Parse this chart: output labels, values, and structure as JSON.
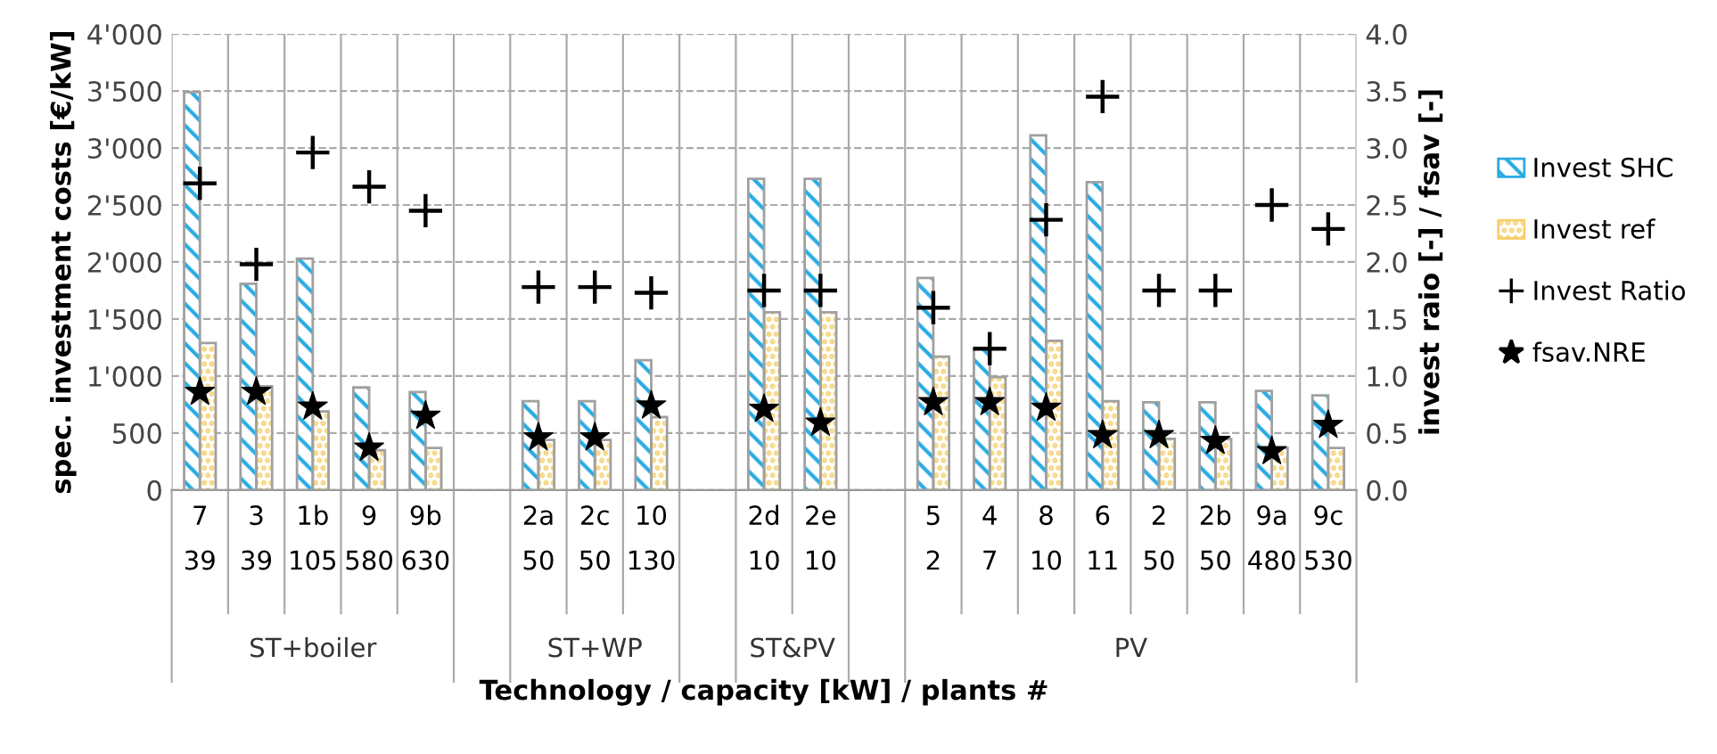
{
  "chart_data": {
    "type": "bar",
    "categories": [
      "7\n39",
      "3\n39",
      "1b\n105",
      "9\n580",
      "9b\n630",
      null,
      "2a\n50",
      "2c\n50",
      "10\n130",
      null,
      "2d\n10",
      "2e\n10",
      null,
      "5\n2",
      "4\n7",
      "8\n10",
      "6\n11",
      "2\n50",
      "2b\n50",
      "9a\n480",
      "9c\n530"
    ],
    "series": [
      {
        "name": "Invest SHC",
        "color": "#29abe2",
        "values": [
          3490,
          1810,
          2030,
          900,
          860,
          null,
          780,
          780,
          1140,
          null,
          2730,
          2730,
          null,
          1860,
          1240,
          3110,
          2700,
          770,
          770,
          870,
          830
        ]
      },
      {
        "name": "Invest ref",
        "color": "#f5cf6a",
        "values": [
          1290,
          910,
          690,
          350,
          370,
          null,
          440,
          440,
          640,
          null,
          1560,
          1560,
          null,
          1170,
          990,
          1310,
          780,
          450,
          450,
          370,
          370
        ]
      },
      {
        "name": "Invest Ratio",
        "type": "scatter",
        "axis": "y2",
        "marker": "cross",
        "color": "#000000",
        "values": [
          2.69,
          1.98,
          2.96,
          2.66,
          2.45,
          null,
          1.78,
          1.78,
          1.73,
          null,
          1.75,
          1.75,
          null,
          1.6,
          1.24,
          2.37,
          3.45,
          1.75,
          1.75,
          2.5,
          2.29
        ]
      },
      {
        "name": "fsav.NRE",
        "type": "scatter",
        "axis": "y2",
        "marker": "star",
        "color": "#000000",
        "values": [
          0.86,
          0.86,
          0.73,
          0.37,
          0.65,
          null,
          0.46,
          0.46,
          0.74,
          null,
          0.71,
          0.59,
          null,
          0.77,
          0.77,
          0.72,
          0.48,
          0.48,
          0.43,
          0.34,
          0.57
        ]
      }
    ],
    "annotations": [
      "ST+boiler",
      "ST+WP",
      "ST&PV",
      "PV"
    ],
    "xlabel": "Technology / capacity [kW] / plants #",
    "ylabel": "spec. investment costs [€/kW]",
    "y2label": "invest raio [-] / fsav [-]",
    "ylim": [
      0,
      4000
    ],
    "yticks": [
      0,
      500,
      {
        "value": 1000,
        "label": "1'000"
      },
      {
        "value": 1500,
        "label": "1'500"
      },
      {
        "value": 2000,
        "label": "2'000"
      },
      {
        "value": 2500,
        "label": "2'500"
      },
      {
        "value": 3000,
        "label": "3'000"
      },
      {
        "value": 3500,
        "label": "3'500"
      },
      {
        "value": 4000,
        "label": "4'000"
      }
    ],
    "y2lim": [
      0,
      4
    ],
    "y2ticks": [
      {
        "value": 0,
        "label": "0.0"
      },
      {
        "value": 0.5,
        "label": "0.5"
      },
      {
        "value": 1,
        "label": "1.0"
      },
      {
        "value": 1.5,
        "label": "1.5"
      },
      {
        "value": 2,
        "label": "2.0"
      },
      {
        "value": 2.5,
        "label": "2.5"
      },
      {
        "value": 3,
        "label": "3.0"
      },
      {
        "value": 3.5,
        "label": "3.5"
      },
      {
        "value": 4,
        "label": "4.0"
      }
    ],
    "grid": true,
    "legend": "right"
  }
}
